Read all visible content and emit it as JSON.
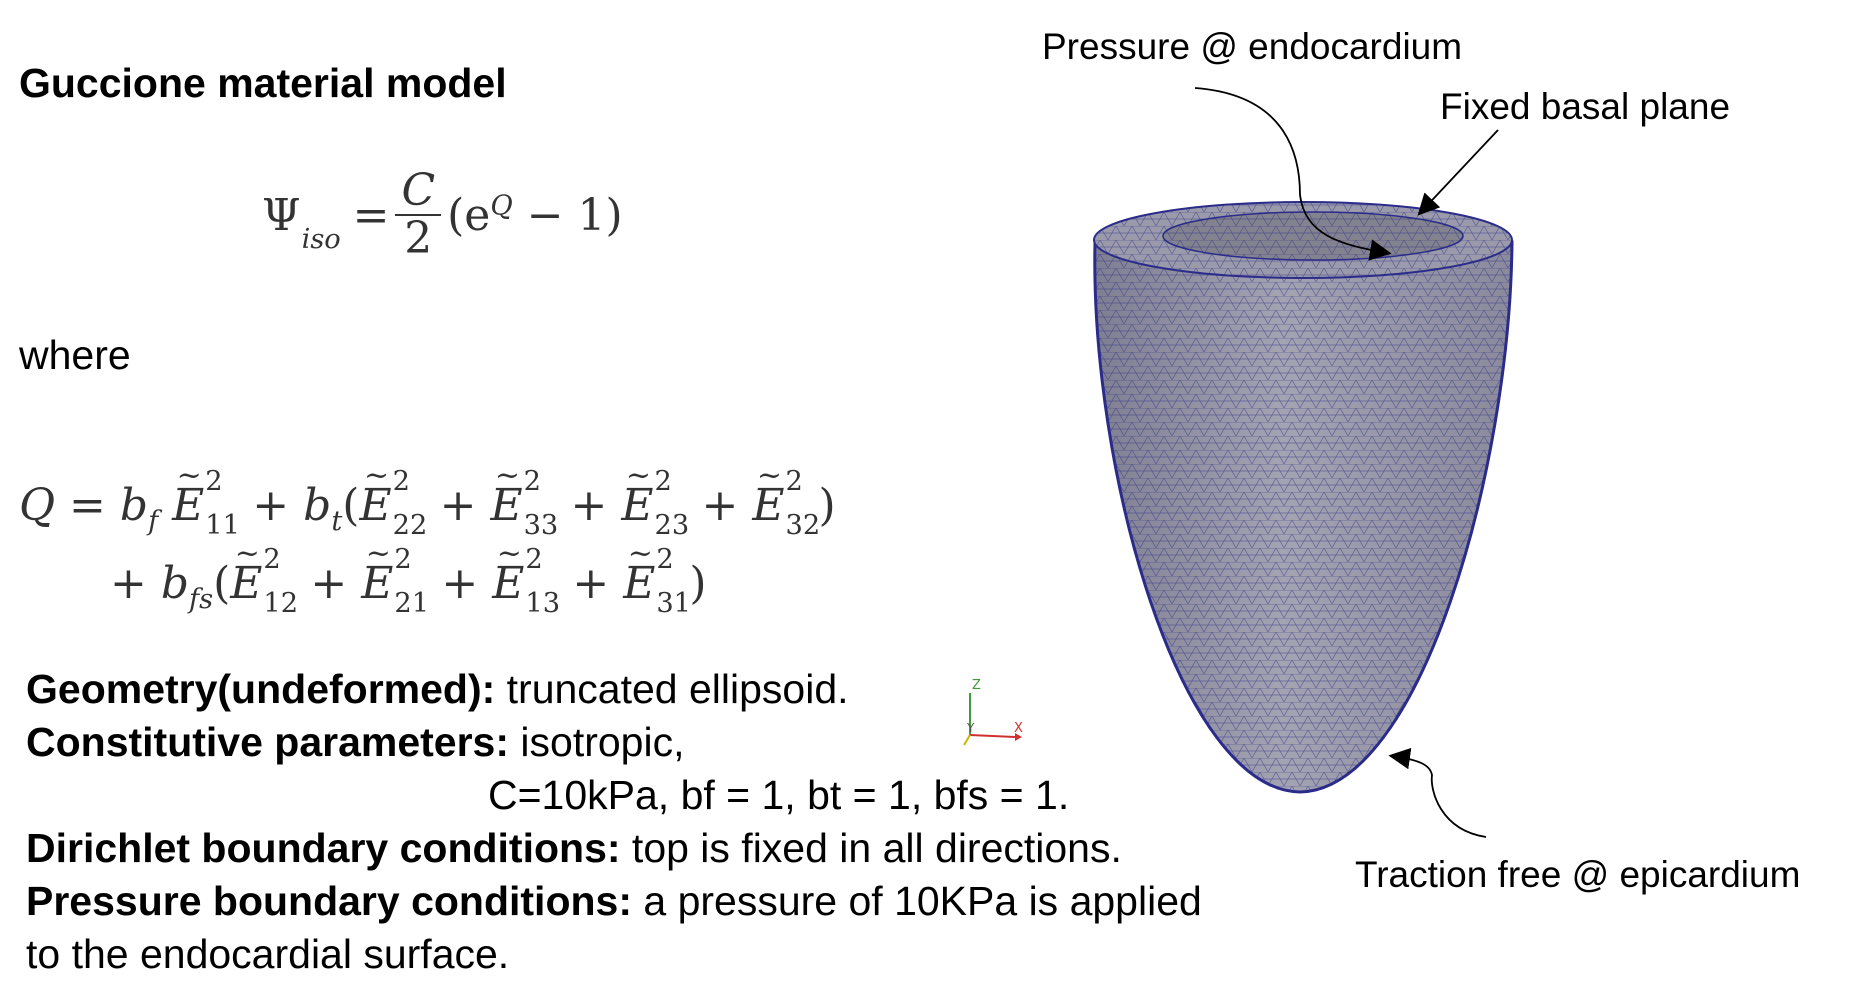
{
  "title": "Guccione material model",
  "equation_psi": {
    "lhs": "Ψ",
    "lhs_sub": "iso",
    "eq": "=",
    "frac_num": "C",
    "frac_den": "2",
    "rest_open": "(e",
    "rest_sup": "Q",
    "rest_close": " − 1)"
  },
  "where_text": "where",
  "equation_q": {
    "line1": {
      "lead": "Q = b",
      "bf_sub": "f",
      "e11": "E",
      "e11_sub": "11",
      "sq": "2",
      "plus_bt": " + b",
      "bt_sub": "t",
      "open": "(",
      "e22": "E",
      "e22_sub": "22",
      "e33": "E",
      "e33_sub": "33",
      "e23": "E",
      "e23_sub": "23",
      "e32": "E",
      "e32_sub": "32",
      "plus": " + ",
      "close": ")"
    },
    "line2": {
      "lead": "+ b",
      "bfs_sub": "fs",
      "open": "(",
      "e12": "E",
      "e12_sub": "12",
      "e21": "E",
      "e21_sub": "21",
      "e13": "E",
      "e13_sub": "13",
      "e31": "E",
      "e31_sub": "31",
      "close": ")"
    }
  },
  "params": [
    {
      "label": "Geometry(undeformed):",
      "value": " truncated ellipsoid."
    },
    {
      "label": "Constitutive parameters:",
      "value": " isotropic,"
    },
    {
      "label": "",
      "value": "C=10kPa, bf = 1, bt = 1, bfs = 1."
    },
    {
      "label": "Dirichlet boundary conditions:",
      "value": " top is fixed in all directions."
    },
    {
      "label": "Pressure boundary conditions:",
      "value": " a pressure of 10KPa is applied"
    },
    {
      "label": "",
      "value": "to the endocardial surface."
    }
  ],
  "annotations": {
    "pressure": "Pressure @ endocardium",
    "fixed": "Fixed basal plane",
    "traction": "Traction free @ epicardium"
  },
  "axes": {
    "z": "Z",
    "y": "Y",
    "x": "X"
  },
  "colors": {
    "mesh_fill": "#9a9aa8",
    "mesh_edge": "#2b2b8a",
    "axis_z": "#3c9c3c",
    "axis_y": "#c8b800",
    "axis_x": "#d23030"
  }
}
